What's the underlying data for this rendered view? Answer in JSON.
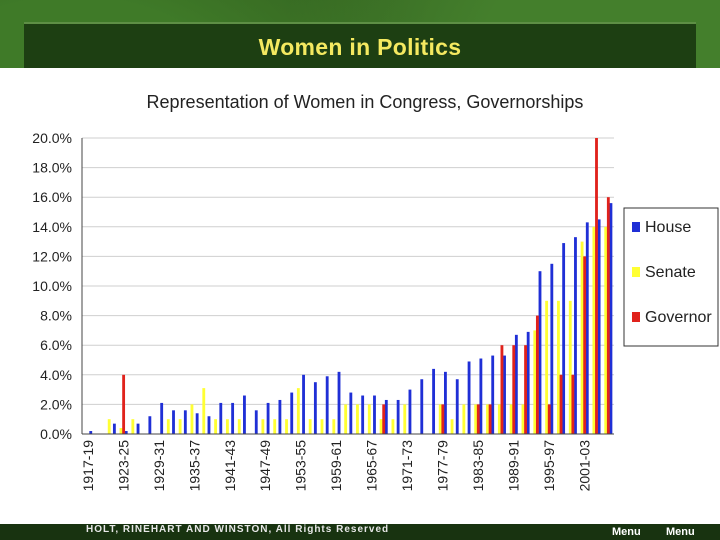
{
  "slide": {
    "title": "Women in Politics"
  },
  "footer": {
    "copyright": "HOLT, RINEHART AND WINSTON, All Rights Reserved",
    "menu_label_1": "Menu",
    "menu_label_2": "Menu"
  },
  "colors": {
    "house": "#1f2fd6",
    "senate": "#ffff33",
    "governor": "#e0221c"
  },
  "chart_data": {
    "type": "bar",
    "title": "Representation of Women in Congress, Governorships",
    "xlabel": "",
    "ylabel": "",
    "ylim": [
      0,
      20
    ],
    "yticks": [
      "0.0%",
      "2.0%",
      "4.0%",
      "6.0%",
      "8.0%",
      "10.0%",
      "12.0%",
      "14.0%",
      "16.0%",
      "18.0%",
      "20.0%"
    ],
    "grid": true,
    "legend_position": "right",
    "categories": [
      "1917-19",
      "1919-21",
      "1921-23",
      "1923-25",
      "1925-27",
      "1927-29",
      "1929-31",
      "1931-33",
      "1933-35",
      "1935-37",
      "1937-39",
      "1939-41",
      "1941-43",
      "1943-45",
      "1945-47",
      "1947-49",
      "1949-51",
      "1951-53",
      "1953-55",
      "1955-57",
      "1957-59",
      "1959-61",
      "1961-63",
      "1963-65",
      "1965-67",
      "1967-69",
      "1969-71",
      "1971-73",
      "1973-75",
      "1975-77",
      "1977-79",
      "1979-81",
      "1981-83",
      "1983-85",
      "1985-87",
      "1987-89",
      "1989-91",
      "1991-93",
      "1993-95",
      "1995-97",
      "1997-99",
      "1999-01",
      "2001-03",
      "2003-05",
      "2005-07"
    ],
    "xtick_labels": [
      "1917-19",
      "1923-25",
      "1929-31",
      "1935-37",
      "1941-43",
      "1947-49",
      "1953-55",
      "1959-61",
      "1965-67",
      "1971-73",
      "1977-79",
      "1983-85",
      "1989-91",
      "1995-97",
      "2001-03"
    ],
    "series": [
      {
        "name": "House",
        "values": [
          0.2,
          0,
          0.7,
          0.2,
          0.7,
          1.2,
          2.1,
          1.6,
          1.6,
          1.4,
          1.2,
          2.1,
          2.1,
          2.6,
          1.6,
          2.1,
          2.3,
          2.8,
          4.0,
          3.5,
          3.9,
          4.2,
          2.8,
          2.6,
          2.6,
          2.3,
          2.3,
          3.0,
          3.7,
          4.4,
          4.2,
          3.7,
          4.9,
          5.1,
          5.3,
          5.3,
          6.7,
          6.9,
          11.0,
          11.5,
          12.9,
          13.3,
          14.3,
          14.5,
          15.6
        ]
      },
      {
        "name": "Senate",
        "values": [
          0,
          0,
          1.0,
          0.4,
          1.0,
          0,
          0,
          1.0,
          1.0,
          2.0,
          3.1,
          1.0,
          1.0,
          1.0,
          0,
          1.0,
          1.0,
          1.0,
          3.1,
          1.0,
          1.0,
          1.0,
          2.0,
          2.0,
          2.0,
          1.0,
          1.0,
          2.0,
          0,
          0,
          2.0,
          1.0,
          2.0,
          2.0,
          2.0,
          2.0,
          2.0,
          2.0,
          7.0,
          9.0,
          9.0,
          9.0,
          13.0,
          14.0,
          14.0
        ]
      },
      {
        "name": "Governor",
        "values": [
          0,
          0,
          0,
          4.0,
          0,
          0,
          0,
          0,
          0,
          0,
          0,
          0,
          0,
          0,
          0,
          0,
          0,
          0,
          0,
          0,
          0,
          0,
          0,
          0,
          0,
          2.0,
          0,
          0,
          0,
          0,
          2.0,
          0,
          0,
          2.0,
          2.0,
          6.0,
          6.0,
          6.0,
          8.0,
          2.0,
          4.0,
          4.0,
          12.0,
          20.0,
          16.0
        ]
      }
    ]
  }
}
